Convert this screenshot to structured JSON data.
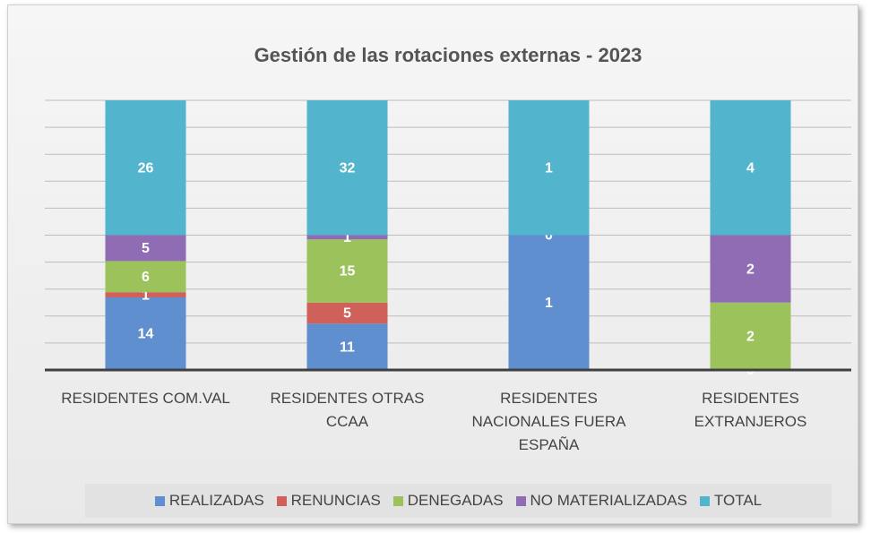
{
  "chart_data": {
    "type": "stacked_percent_bar",
    "title": "Gestión de las rotaciones externas - 2023",
    "categories": [
      "RESIDENTES COM.VAL",
      "RESIDENTES OTRAS CCAA",
      "RESIDENTES NACIONALES FUERA ESPAÑA",
      "RESIDENTES EXTRANJEROS"
    ],
    "series": [
      {
        "name": "REALIZADAS",
        "color": "#5f8fcf",
        "values": [
          14,
          11,
          1,
          0
        ]
      },
      {
        "name": "RENUNCIAS",
        "color": "#d0605a",
        "values": [
          1,
          5,
          0,
          null
        ]
      },
      {
        "name": "DENEGADAS",
        "color": "#9cc25c",
        "values": [
          6,
          15,
          null,
          2
        ]
      },
      {
        "name": "NO MATERIALIZADAS",
        "color": "#8f6cb4",
        "values": [
          5,
          1,
          null,
          2
        ]
      },
      {
        "name": "TOTAL",
        "color": "#52b4cd",
        "values": [
          26,
          32,
          1,
          4
        ]
      }
    ],
    "ylim": [
      0,
      100
    ],
    "yticks": [
      0,
      10,
      20,
      30,
      40,
      50,
      60,
      70,
      80,
      90,
      100
    ],
    "grid": true,
    "tick_labels": false,
    "legend": "bottom"
  }
}
